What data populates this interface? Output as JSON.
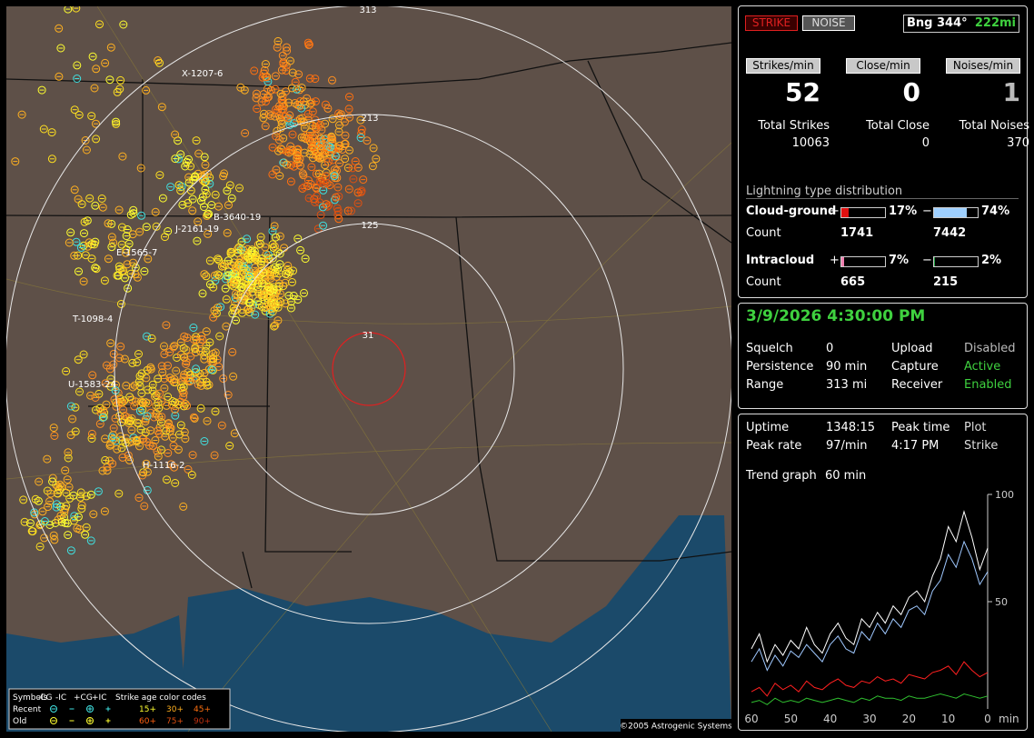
{
  "header": {
    "strike_button": "STRIKE",
    "noise_button": "NOISE",
    "bearing": "Bng 344°",
    "distance": "222mi"
  },
  "rates": [
    {
      "label": "Strikes/min",
      "value": 52,
      "total_label": "Total Strikes",
      "total": 10063
    },
    {
      "label": "Close/min",
      "value": 0,
      "total_label": "Total Close",
      "total": 0
    },
    {
      "label": "Noises/min",
      "value": 1,
      "total_label": "Total Noises",
      "total": 370
    }
  ],
  "distribution": {
    "title": "Lightning type distribution",
    "count_label": "Count",
    "plus": "+",
    "minus": "−",
    "rows": [
      {
        "name": "Cloud-ground",
        "plus_pct": {
          "value": 17,
          "label": "17%"
        },
        "minus_pct": {
          "value": 74,
          "label": "74%"
        },
        "plus_count": 1741,
        "minus_count": 7442
      },
      {
        "name": "Intracloud",
        "plus_pct": {
          "value": 7,
          "label": "7%"
        },
        "minus_pct": {
          "value": 2,
          "label": "2%"
        },
        "plus_count": 665,
        "minus_count": 215
      }
    ]
  },
  "status": {
    "datetime": "3/9/2026 4:30:00 PM",
    "rows": [
      [
        "Squelch",
        "0",
        "Upload",
        "Disabled"
      ],
      [
        "Persistence",
        "90 min",
        "Capture",
        "Active"
      ],
      [
        "Range",
        "313 mi",
        "Receiver",
        "Enabled"
      ]
    ]
  },
  "stats": {
    "rows": [
      [
        "Uptime",
        "1348:15",
        "Peak time",
        "Plot"
      ],
      [
        "Peak rate",
        "97/min",
        "4:17 PM",
        "Strike"
      ]
    ],
    "trend_label": "Trend graph",
    "trend_value": "60 min"
  },
  "map": {
    "ring_labels": [
      "313",
      "213",
      "125",
      "31"
    ],
    "storm_labels": [
      "X-1207-6",
      "B-3640-19",
      "J-2161-19",
      "E-1565-7",
      "T-1098-4",
      "U-1583-24",
      "H-1116-2"
    ],
    "legend": {
      "symbols": "Symbols",
      "headers": [
        "-CG",
        "-IC",
        "+CG",
        "+IC"
      ],
      "age_title": "Strike age color codes",
      "recent": "Recent",
      "old": "Old",
      "recent_ages": [
        "15+",
        "30+",
        "45+"
      ],
      "old_ages": [
        "60+",
        "75+",
        "90+"
      ]
    },
    "copyright": "©2005 Astrogenic Systems"
  },
  "chart_data": {
    "type": "line",
    "x": [
      60,
      58,
      56,
      54,
      52,
      50,
      48,
      46,
      44,
      42,
      40,
      38,
      36,
      34,
      32,
      30,
      28,
      26,
      24,
      22,
      20,
      18,
      16,
      14,
      12,
      10,
      8,
      6,
      4,
      2,
      0
    ],
    "xlim": [
      60,
      0
    ],
    "xticks": [
      60,
      50,
      40,
      30,
      20,
      10,
      0
    ],
    "x_unit": "min",
    "ylim": [
      0,
      100
    ],
    "yticks": [
      50,
      100
    ],
    "series": [
      {
        "color": "#ffffff",
        "values": [
          28,
          35,
          22,
          30,
          25,
          32,
          28,
          38,
          30,
          26,
          35,
          40,
          33,
          30,
          42,
          38,
          45,
          40,
          48,
          44,
          52,
          55,
          50,
          62,
          70,
          85,
          78,
          92,
          80,
          65,
          75
        ]
      },
      {
        "color": "#9fc8ff",
        "values": [
          22,
          28,
          18,
          25,
          20,
          27,
          24,
          30,
          26,
          22,
          30,
          34,
          28,
          26,
          36,
          32,
          40,
          35,
          42,
          38,
          46,
          48,
          44,
          55,
          60,
          72,
          66,
          78,
          70,
          58,
          64
        ]
      },
      {
        "color": "#ff2020",
        "values": [
          8,
          10,
          6,
          12,
          9,
          11,
          8,
          13,
          10,
          9,
          12,
          14,
          11,
          10,
          13,
          12,
          15,
          13,
          14,
          12,
          16,
          15,
          14,
          17,
          18,
          20,
          16,
          22,
          18,
          15,
          17
        ]
      },
      {
        "color": "#30c030",
        "values": [
          3,
          4,
          2,
          5,
          3,
          4,
          3,
          5,
          4,
          3,
          4,
          5,
          4,
          3,
          5,
          4,
          6,
          5,
          5,
          4,
          6,
          5,
          5,
          6,
          7,
          6,
          5,
          7,
          6,
          5,
          6
        ]
      }
    ]
  }
}
